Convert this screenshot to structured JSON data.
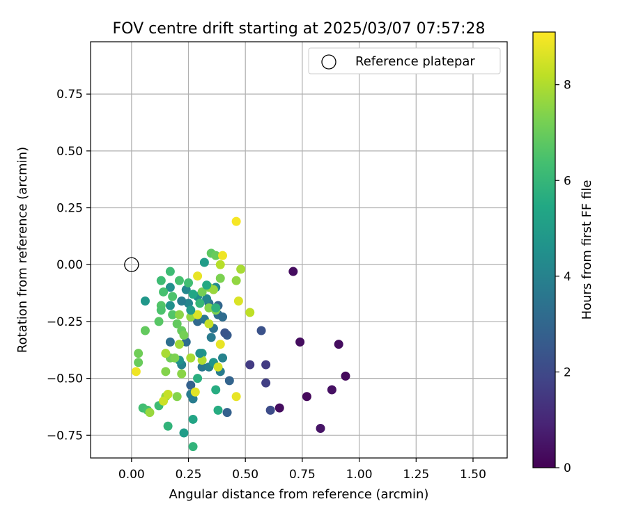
{
  "chart_data": {
    "type": "scatter",
    "title": "FOV centre drift starting at 2025/03/07 07:57:28",
    "xlabel": "Angular distance from reference (arcmin)",
    "ylabel": "Rotation from reference (arcmin)",
    "xlim": [
      -0.18,
      1.65
    ],
    "ylim": [
      -0.85,
      0.98
    ],
    "xticks": [
      0.0,
      0.25,
      0.5,
      0.75,
      1.0,
      1.25,
      1.5
    ],
    "xtick_labels": [
      "0.00",
      "0.25",
      "0.50",
      "0.75",
      "1.00",
      "1.25",
      "1.50"
    ],
    "yticks": [
      -0.75,
      -0.5,
      -0.25,
      0.0,
      0.25,
      0.5,
      0.75
    ],
    "ytick_labels": [
      "−0.75",
      "−0.50",
      "−0.25",
      "0.00",
      "0.25",
      "0.50",
      "0.75"
    ],
    "grid": true,
    "legend": {
      "position": "top-right",
      "entries": [
        "Reference platepar"
      ]
    },
    "reference_point": {
      "x": 0.0,
      "y": 0.0
    },
    "colorbar": {
      "label": "Hours from first FF file",
      "range": [
        0,
        9.1
      ],
      "ticks": [
        0,
        2,
        4,
        6,
        8
      ],
      "tick_labels": [
        "0",
        "2",
        "4",
        "6",
        "8"
      ],
      "colormap": "viridis"
    },
    "points": [
      {
        "x": 0.71,
        "y": -0.03,
        "c": 0.3
      },
      {
        "x": 0.74,
        "y": -0.34,
        "c": 0.3
      },
      {
        "x": 0.91,
        "y": -0.35,
        "c": 0.3
      },
      {
        "x": 0.94,
        "y": -0.49,
        "c": 0.2
      },
      {
        "x": 0.88,
        "y": -0.55,
        "c": 0.4
      },
      {
        "x": 0.77,
        "y": -0.58,
        "c": 0.2
      },
      {
        "x": 0.65,
        "y": -0.63,
        "c": 0.3
      },
      {
        "x": 0.83,
        "y": -0.72,
        "c": 0.5
      },
      {
        "x": 0.52,
        "y": -0.44,
        "c": 1.6
      },
      {
        "x": 0.59,
        "y": -0.44,
        "c": 1.6
      },
      {
        "x": 0.59,
        "y": -0.52,
        "c": 1.7
      },
      {
        "x": 0.61,
        "y": -0.64,
        "c": 2.1
      },
      {
        "x": 0.57,
        "y": -0.29,
        "c": 2.3
      },
      {
        "x": 0.42,
        "y": -0.31,
        "c": 2.6
      },
      {
        "x": 0.41,
        "y": -0.3,
        "c": 2.4
      },
      {
        "x": 0.43,
        "y": -0.51,
        "c": 2.9
      },
      {
        "x": 0.42,
        "y": -0.65,
        "c": 2.8
      },
      {
        "x": 0.26,
        "y": -0.53,
        "c": 2.8
      },
      {
        "x": 0.24,
        "y": -0.34,
        "c": 3.2
      },
      {
        "x": 0.17,
        "y": -0.34,
        "c": 3.3
      },
      {
        "x": 0.29,
        "y": -0.25,
        "c": 3.1
      },
      {
        "x": 0.32,
        "y": -0.24,
        "c": 3.6
      },
      {
        "x": 0.34,
        "y": -0.17,
        "c": 3.4
      },
      {
        "x": 0.38,
        "y": -0.18,
        "c": 3.0
      },
      {
        "x": 0.38,
        "y": -0.22,
        "c": 3.3
      },
      {
        "x": 0.36,
        "y": -0.28,
        "c": 3.4
      },
      {
        "x": 0.35,
        "y": -0.32,
        "c": 3.7
      },
      {
        "x": 0.31,
        "y": -0.45,
        "c": 3.6
      },
      {
        "x": 0.34,
        "y": -0.45,
        "c": 3.9
      },
      {
        "x": 0.39,
        "y": -0.47,
        "c": 3.8
      },
      {
        "x": 0.4,
        "y": -0.41,
        "c": 4.0
      },
      {
        "x": 0.26,
        "y": -0.57,
        "c": 3.8
      },
      {
        "x": 0.27,
        "y": -0.59,
        "c": 3.8
      },
      {
        "x": 0.22,
        "y": -0.44,
        "c": 4.0
      },
      {
        "x": 0.24,
        "y": -0.11,
        "c": 4.2
      },
      {
        "x": 0.25,
        "y": -0.17,
        "c": 4.1
      },
      {
        "x": 0.29,
        "y": -0.14,
        "c": 4.4
      },
      {
        "x": 0.33,
        "y": -0.15,
        "c": 4.2
      },
      {
        "x": 0.37,
        "y": -0.1,
        "c": 4.3
      },
      {
        "x": 0.17,
        "y": -0.1,
        "c": 4.5
      },
      {
        "x": 0.17,
        "y": -0.18,
        "c": 4.5
      },
      {
        "x": 0.06,
        "y": -0.16,
        "c": 4.8
      },
      {
        "x": 0.21,
        "y": -0.42,
        "c": 4.6
      },
      {
        "x": 0.31,
        "y": -0.39,
        "c": 4.8
      },
      {
        "x": 0.36,
        "y": -0.43,
        "c": 4.7
      },
      {
        "x": 0.32,
        "y": 0.01,
        "c": 5.0
      },
      {
        "x": 0.23,
        "y": -0.74,
        "c": 5.0
      },
      {
        "x": 0.27,
        "y": -0.68,
        "c": 5.3
      },
      {
        "x": 0.38,
        "y": -0.64,
        "c": 5.6
      },
      {
        "x": 0.37,
        "y": -0.55,
        "c": 5.6
      },
      {
        "x": 0.29,
        "y": -0.5,
        "c": 5.7
      },
      {
        "x": 0.16,
        "y": -0.71,
        "c": 5.9
      },
      {
        "x": 0.27,
        "y": -0.8,
        "c": 5.9
      },
      {
        "x": 0.12,
        "y": -0.62,
        "c": 6.2
      },
      {
        "x": 0.05,
        "y": -0.63,
        "c": 6.3
      },
      {
        "x": 0.07,
        "y": -0.64,
        "c": 6.4
      },
      {
        "x": 0.17,
        "y": -0.03,
        "c": 6.2
      },
      {
        "x": 0.13,
        "y": -0.07,
        "c": 6.2
      },
      {
        "x": 0.21,
        "y": -0.07,
        "c": 6.4
      },
      {
        "x": 0.25,
        "y": -0.08,
        "c": 6.3
      },
      {
        "x": 0.14,
        "y": -0.12,
        "c": 6.4
      },
      {
        "x": 0.18,
        "y": -0.14,
        "c": 6.5
      },
      {
        "x": 0.13,
        "y": -0.18,
        "c": 6.6
      },
      {
        "x": 0.13,
        "y": -0.2,
        "c": 6.5
      },
      {
        "x": 0.18,
        "y": -0.22,
        "c": 6.6
      },
      {
        "x": 0.12,
        "y": -0.25,
        "c": 6.7
      },
      {
        "x": 0.06,
        "y": -0.29,
        "c": 6.9
      },
      {
        "x": 0.2,
        "y": -0.26,
        "c": 6.9
      },
      {
        "x": 0.22,
        "y": -0.29,
        "c": 7.0
      },
      {
        "x": 0.23,
        "y": -0.31,
        "c": 7.2
      },
      {
        "x": 0.17,
        "y": -0.41,
        "c": 7.1
      },
      {
        "x": 0.19,
        "y": -0.41,
        "c": 7.3
      },
      {
        "x": 0.03,
        "y": -0.39,
        "c": 7.1
      },
      {
        "x": 0.03,
        "y": -0.43,
        "c": 7.0
      },
      {
        "x": 0.15,
        "y": -0.47,
        "c": 7.4
      },
      {
        "x": 0.22,
        "y": -0.48,
        "c": 7.5
      },
      {
        "x": 0.2,
        "y": -0.58,
        "c": 7.4
      },
      {
        "x": 0.15,
        "y": -0.58,
        "c": 7.6
      },
      {
        "x": 0.08,
        "y": -0.65,
        "c": 7.7
      },
      {
        "x": 0.35,
        "y": 0.05,
        "c": 6.8
      },
      {
        "x": 0.37,
        "y": 0.04,
        "c": 7.0
      },
      {
        "x": 0.39,
        "y": -0.06,
        "c": 7.3
      },
      {
        "x": 0.46,
        "y": -0.07,
        "c": 7.6
      },
      {
        "x": 0.48,
        "y": -0.02,
        "c": 7.9
      },
      {
        "x": 0.34,
        "y": -0.1,
        "c": 7.5
      },
      {
        "x": 0.36,
        "y": -0.11,
        "c": 7.7
      },
      {
        "x": 0.31,
        "y": -0.12,
        "c": 7.2
      },
      {
        "x": 0.34,
        "y": -0.19,
        "c": 7.4
      },
      {
        "x": 0.37,
        "y": -0.2,
        "c": 7.3
      },
      {
        "x": 0.26,
        "y": -0.23,
        "c": 7.6
      },
      {
        "x": 0.21,
        "y": -0.22,
        "c": 7.5
      },
      {
        "x": 0.21,
        "y": -0.35,
        "c": 7.8
      },
      {
        "x": 0.26,
        "y": -0.41,
        "c": 7.9
      },
      {
        "x": 0.31,
        "y": -0.42,
        "c": 8.0
      },
      {
        "x": 0.15,
        "y": -0.39,
        "c": 7.9
      },
      {
        "x": 0.14,
        "y": -0.6,
        "c": 8.4
      },
      {
        "x": 0.16,
        "y": -0.57,
        "c": 8.3
      },
      {
        "x": 0.38,
        "y": -0.45,
        "c": 8.5
      },
      {
        "x": 0.34,
        "y": -0.26,
        "c": 8.3
      },
      {
        "x": 0.52,
        "y": -0.21,
        "c": 8.2
      },
      {
        "x": 0.47,
        "y": -0.16,
        "c": 8.6
      },
      {
        "x": 0.39,
        "y": -0.35,
        "c": 8.8
      },
      {
        "x": 0.29,
        "y": -0.22,
        "c": 8.6
      },
      {
        "x": 0.28,
        "y": -0.56,
        "c": 8.7
      },
      {
        "x": 0.29,
        "y": -0.05,
        "c": 8.8
      },
      {
        "x": 0.39,
        "y": 0.0,
        "c": 8.1
      },
      {
        "x": 0.4,
        "y": 0.04,
        "c": 8.9
      },
      {
        "x": 0.46,
        "y": 0.19,
        "c": 9.0
      },
      {
        "x": 0.46,
        "y": -0.58,
        "c": 8.8
      },
      {
        "x": 0.02,
        "y": -0.47,
        "c": 8.9
      },
      {
        "x": 0.4,
        "y": -0.23,
        "c": 3.2
      },
      {
        "x": 0.3,
        "y": -0.39,
        "c": 4.5
      },
      {
        "x": 0.27,
        "y": -0.13,
        "c": 5.4
      },
      {
        "x": 0.3,
        "y": -0.17,
        "c": 6.0
      },
      {
        "x": 0.37,
        "y": -0.19,
        "c": 5.8
      },
      {
        "x": 0.33,
        "y": -0.09,
        "c": 5.5
      },
      {
        "x": 0.22,
        "y": -0.16,
        "c": 3.8
      },
      {
        "x": 0.26,
        "y": -0.2,
        "c": 4.9
      }
    ]
  }
}
